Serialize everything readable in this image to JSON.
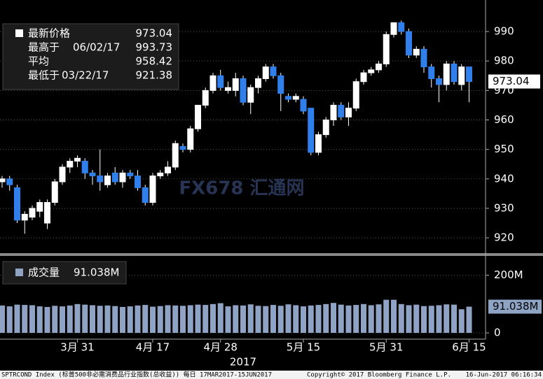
{
  "chart_data": [
    {
      "type": "candlestick",
      "categories": [
        null,
        null,
        null,
        null,
        null,
        null,
        null,
        null,
        null,
        null,
        "3月 31",
        null,
        null,
        null,
        null,
        null,
        null,
        null,
        null,
        null,
        "4月 17",
        null,
        null,
        null,
        null,
        null,
        null,
        null,
        null,
        "4月 28",
        null,
        null,
        null,
        null,
        null,
        null,
        null,
        null,
        null,
        null,
        "5月 15",
        null,
        null,
        null,
        null,
        null,
        null,
        null,
        null,
        null,
        null,
        "5月 31",
        null,
        null,
        null,
        null,
        null,
        null,
        null,
        null,
        null,
        null,
        "6月 15"
      ],
      "x_label": "2017",
      "open": [
        939,
        940,
        937,
        926,
        927,
        929,
        925,
        932,
        939,
        944,
        946,
        946,
        942,
        941,
        938,
        942,
        939,
        942,
        941,
        937,
        932,
        941,
        942,
        944,
        951,
        950,
        957,
        965,
        970,
        975,
        970,
        970,
        974,
        966,
        971,
        974,
        978,
        975,
        968,
        967,
        967,
        964,
        949,
        955,
        960,
        965,
        961,
        964,
        973,
        976,
        977,
        979,
        989,
        993,
        990,
        982,
        984,
        978,
        974,
        972,
        979,
        972,
        978
      ],
      "high": [
        941,
        941,
        938,
        929,
        931,
        933,
        933,
        940,
        945,
        947,
        948,
        947,
        943,
        950,
        942,
        944,
        943,
        943,
        943,
        938,
        942,
        943,
        946,
        953,
        952,
        958,
        965,
        971,
        976,
        977,
        973,
        976,
        975,
        972,
        975,
        979,
        979,
        976,
        969,
        969,
        968,
        964,
        956,
        961,
        966,
        966,
        966,
        974,
        977,
        978,
        980,
        990,
        993,
        993.73,
        991,
        985,
        985,
        979,
        975,
        980,
        980,
        979,
        978
      ],
      "low": [
        937,
        936,
        925,
        921.38,
        926,
        927,
        923,
        931,
        938,
        942,
        944,
        940,
        938,
        936,
        937,
        938,
        937,
        940,
        936,
        931,
        931,
        940,
        941,
        943,
        949,
        949,
        956,
        964,
        969,
        970,
        969,
        968,
        965,
        962,
        969,
        973,
        974,
        963,
        966,
        966,
        962,
        948,
        948,
        954,
        958,
        960,
        958,
        963,
        972,
        975,
        976,
        978,
        988,
        989,
        981,
        981,
        976,
        971,
        966,
        970,
        972,
        970,
        966
      ],
      "close": [
        940,
        938,
        926,
        928,
        930,
        932,
        932,
        939,
        944,
        946,
        947,
        942,
        941,
        939,
        941,
        939,
        942,
        941,
        937,
        932,
        941,
        942,
        944,
        952,
        950,
        957,
        965,
        970,
        975,
        971,
        971,
        974,
        966,
        971,
        974,
        978,
        975,
        969,
        967,
        968,
        963,
        949,
        955,
        960,
        965,
        961,
        964,
        973,
        976,
        977,
        979,
        989,
        993,
        990,
        982,
        984,
        978,
        974,
        972,
        979,
        973,
        978,
        973.04
      ],
      "up_color": "#ffffff",
      "down_color": "#2f80ed",
      "ylim": [
        914.8,
        1000.7
      ],
      "yticks": [
        920,
        930,
        940,
        950,
        960,
        970,
        980,
        990
      ],
      "grid": true,
      "legend": [
        {
          "label": "最新价格",
          "value": 973.04
        },
        {
          "label": "最高于",
          "date": "06/02/17",
          "value": 993.73
        },
        {
          "label": "平均",
          "value": 958.42
        },
        {
          "label": "最低于",
          "date": "03/22/17",
          "value": 921.38
        }
      ],
      "watermark": "FX678 汇通网"
    },
    {
      "type": "bar",
      "legend": {
        "label": "成交量",
        "value": 91.038,
        "value_label": "91.038M"
      },
      "values": [
        95,
        92,
        98,
        97,
        96,
        92,
        90,
        94,
        92,
        95,
        100,
        98,
        96,
        94,
        95,
        93,
        90,
        92,
        95,
        97,
        91,
        93,
        96,
        95,
        94,
        96,
        98,
        97,
        100,
        103,
        92,
        96,
        95,
        99,
        94,
        93,
        97,
        94,
        99,
        96,
        92,
        95,
        97,
        100,
        104,
        98,
        95,
        97,
        100,
        96,
        99,
        115,
        115,
        100,
        96,
        98,
        93,
        94,
        96,
        99,
        98,
        82,
        91.038
      ],
      "color": "#8fa3c4",
      "ylim": [
        -21.7,
        267
      ],
      "yticks": [
        0,
        {
          "value": 200,
          "label": "200M"
        }
      ],
      "grid": true
    }
  ],
  "footer": {
    "left": "SPTRCOND Index (标普500非必需消费品行业指数(总收益))  每日 17MAR2017-15JUN2017",
    "center": "Copyright© 2017 Bloomberg Finance L.P.",
    "right": "16-Jun-2017 06:16:34"
  }
}
